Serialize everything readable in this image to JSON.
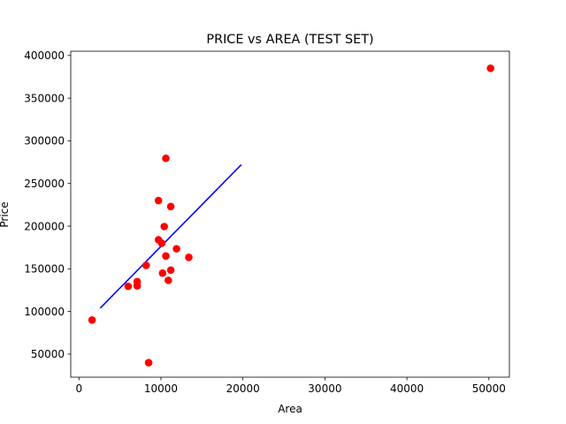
{
  "chart_data": {
    "type": "scatter",
    "title": "PRICE vs AREA (TEST SET)",
    "xlabel": "Area",
    "ylabel": "Price",
    "xlim": [
      -1000,
      52500
    ],
    "ylim": [
      23000,
      405000
    ],
    "xticks": [
      0,
      10000,
      20000,
      30000,
      40000,
      50000
    ],
    "yticks": [
      50000,
      100000,
      150000,
      200000,
      250000,
      300000,
      350000,
      400000
    ],
    "grid": false,
    "series": [
      {
        "kind": "scatter",
        "color": "#ff0000",
        "points": [
          [
            1600,
            90000
          ],
          [
            6000,
            129500
          ],
          [
            7100,
            135000
          ],
          [
            7100,
            130000
          ],
          [
            8200,
            154000
          ],
          [
            8500,
            40000
          ],
          [
            9700,
            230000
          ],
          [
            9700,
            184000
          ],
          [
            10100,
            180000
          ],
          [
            10200,
            145000
          ],
          [
            10400,
            199500
          ],
          [
            10600,
            279500
          ],
          [
            10600,
            165000
          ],
          [
            10900,
            136500
          ],
          [
            11200,
            148500
          ],
          [
            11200,
            223000
          ],
          [
            11900,
            173500
          ],
          [
            13400,
            163500
          ],
          [
            50200,
            385000
          ]
        ]
      },
      {
        "kind": "line",
        "color": "#0000ff",
        "points": [
          [
            2600,
            104000
          ],
          [
            19800,
            272000
          ]
        ]
      }
    ]
  }
}
